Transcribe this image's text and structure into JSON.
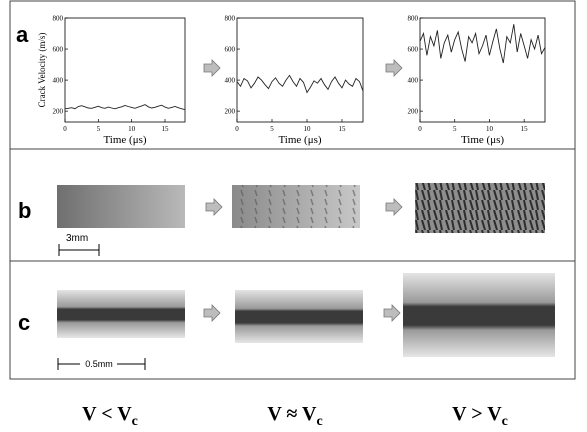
{
  "panels": {
    "a": "a",
    "b": "b",
    "c": "c"
  },
  "scale_bars": {
    "b": "3mm",
    "c": "0.5mm"
  },
  "conditions": [
    {
      "main": "V < V",
      "sub": "c"
    },
    {
      "main": "V ≈ V",
      "sub": "c"
    },
    {
      "main": "V > V",
      "sub": "c"
    }
  ],
  "chart_data": [
    {
      "type": "line",
      "ylabel": "Crack Velocity (m/s)",
      "xlabel": "Time (μs)",
      "xlim": [
        0,
        18
      ],
      "xticks": [
        0,
        5,
        10,
        15
      ],
      "ylim": [
        130,
        800
      ],
      "yticks": [
        200,
        400,
        600,
        800
      ],
      "x": [
        0,
        0.5,
        1,
        1.5,
        2,
        2.5,
        3,
        3.5,
        4,
        4.5,
        5,
        5.5,
        6,
        6.5,
        7,
        7.5,
        8,
        8.5,
        9,
        9.5,
        10,
        10.5,
        11,
        11.5,
        12,
        12.5,
        13,
        13.5,
        14,
        14.5,
        15,
        15.5,
        16,
        16.5,
        17,
        17.5,
        18
      ],
      "values": [
        215,
        218,
        222,
        216,
        230,
        235,
        228,
        220,
        218,
        225,
        232,
        222,
        218,
        226,
        220,
        215,
        222,
        228,
        236,
        230,
        224,
        218,
        226,
        234,
        242,
        228,
        220,
        225,
        232,
        238,
        226,
        218,
        224,
        230,
        222,
        215,
        210
      ],
      "color": "#222222"
    },
    {
      "type": "line",
      "xlabel": "Time (μs)",
      "xlim": [
        0,
        18
      ],
      "xticks": [
        0,
        5,
        10,
        15
      ],
      "ylim": [
        130,
        800
      ],
      "yticks": [
        200,
        400,
        600,
        800
      ],
      "x": [
        0,
        0.5,
        1,
        1.5,
        2,
        2.5,
        3,
        3.5,
        4,
        4.5,
        5,
        5.5,
        6,
        6.5,
        7,
        7.5,
        8,
        8.5,
        9,
        9.5,
        10,
        10.5,
        11,
        11.5,
        12,
        12.5,
        13,
        13.5,
        14,
        14.5,
        15,
        15.5,
        16,
        16.5,
        17,
        17.5,
        18
      ],
      "values": [
        390,
        360,
        410,
        395,
        350,
        380,
        420,
        400,
        370,
        345,
        390,
        415,
        380,
        360,
        400,
        430,
        390,
        360,
        410,
        385,
        320,
        355,
        395,
        380,
        410,
        370,
        340,
        390,
        420,
        380,
        350,
        400,
        375,
        360,
        410,
        390,
        330
      ],
      "color": "#222222"
    },
    {
      "type": "line",
      "xlabel": "Time (μs)",
      "xlim": [
        0,
        18
      ],
      "xticks": [
        0,
        5,
        10,
        15
      ],
      "ylim": [
        130,
        800
      ],
      "yticks": [
        200,
        400,
        600,
        800
      ],
      "x": [
        0,
        0.5,
        1,
        1.5,
        2,
        2.5,
        3,
        3.5,
        4,
        4.5,
        5,
        5.5,
        6,
        6.5,
        7,
        7.5,
        8,
        8.5,
        9,
        9.5,
        10,
        10.5,
        11,
        11.5,
        12,
        12.5,
        13,
        13.5,
        14,
        14.5,
        15,
        15.5,
        16,
        16.5,
        17,
        17.5,
        18
      ],
      "values": [
        650,
        700,
        560,
        680,
        620,
        720,
        540,
        640,
        690,
        580,
        660,
        710,
        600,
        520,
        680,
        640,
        700,
        570,
        620,
        690,
        560,
        650,
        730,
        600,
        510,
        680,
        640,
        760,
        580,
        700,
        620,
        540,
        660,
        600,
        690,
        570,
        610
      ],
      "color": "#222222"
    }
  ]
}
